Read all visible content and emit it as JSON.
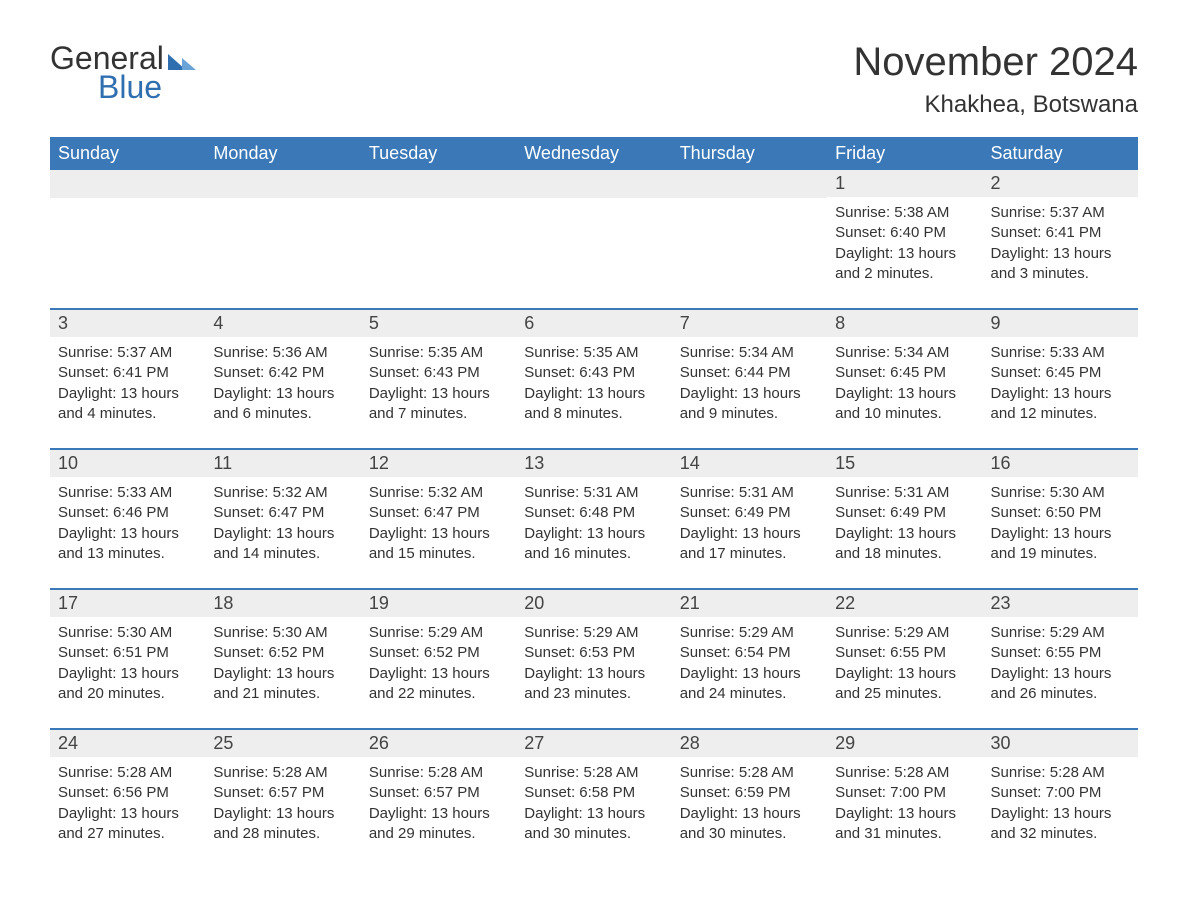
{
  "logo": {
    "text_general": "General",
    "text_blue": "Blue"
  },
  "title": "November 2024",
  "location": "Khakhea, Botswana",
  "colors": {
    "header_bg": "#3a78b8",
    "header_text": "#ffffff",
    "cell_top_border": "#3a78b8",
    "day_bar_bg": "#eeeeee",
    "text": "#333333",
    "logo_blue": "#2f6fb0"
  },
  "day_headers": [
    "Sunday",
    "Monday",
    "Tuesday",
    "Wednesday",
    "Thursday",
    "Friday",
    "Saturday"
  ],
  "weeks": [
    [
      null,
      null,
      null,
      null,
      null,
      {
        "num": "1",
        "sunrise": "Sunrise: 5:38 AM",
        "sunset": "Sunset: 6:40 PM",
        "daylight": "Daylight: 13 hours and 2 minutes."
      },
      {
        "num": "2",
        "sunrise": "Sunrise: 5:37 AM",
        "sunset": "Sunset: 6:41 PM",
        "daylight": "Daylight: 13 hours and 3 minutes."
      }
    ],
    [
      {
        "num": "3",
        "sunrise": "Sunrise: 5:37 AM",
        "sunset": "Sunset: 6:41 PM",
        "daylight": "Daylight: 13 hours and 4 minutes."
      },
      {
        "num": "4",
        "sunrise": "Sunrise: 5:36 AM",
        "sunset": "Sunset: 6:42 PM",
        "daylight": "Daylight: 13 hours and 6 minutes."
      },
      {
        "num": "5",
        "sunrise": "Sunrise: 5:35 AM",
        "sunset": "Sunset: 6:43 PM",
        "daylight": "Daylight: 13 hours and 7 minutes."
      },
      {
        "num": "6",
        "sunrise": "Sunrise: 5:35 AM",
        "sunset": "Sunset: 6:43 PM",
        "daylight": "Daylight: 13 hours and 8 minutes."
      },
      {
        "num": "7",
        "sunrise": "Sunrise: 5:34 AM",
        "sunset": "Sunset: 6:44 PM",
        "daylight": "Daylight: 13 hours and 9 minutes."
      },
      {
        "num": "8",
        "sunrise": "Sunrise: 5:34 AM",
        "sunset": "Sunset: 6:45 PM",
        "daylight": "Daylight: 13 hours and 10 minutes."
      },
      {
        "num": "9",
        "sunrise": "Sunrise: 5:33 AM",
        "sunset": "Sunset: 6:45 PM",
        "daylight": "Daylight: 13 hours and 12 minutes."
      }
    ],
    [
      {
        "num": "10",
        "sunrise": "Sunrise: 5:33 AM",
        "sunset": "Sunset: 6:46 PM",
        "daylight": "Daylight: 13 hours and 13 minutes."
      },
      {
        "num": "11",
        "sunrise": "Sunrise: 5:32 AM",
        "sunset": "Sunset: 6:47 PM",
        "daylight": "Daylight: 13 hours and 14 minutes."
      },
      {
        "num": "12",
        "sunrise": "Sunrise: 5:32 AM",
        "sunset": "Sunset: 6:47 PM",
        "daylight": "Daylight: 13 hours and 15 minutes."
      },
      {
        "num": "13",
        "sunrise": "Sunrise: 5:31 AM",
        "sunset": "Sunset: 6:48 PM",
        "daylight": "Daylight: 13 hours and 16 minutes."
      },
      {
        "num": "14",
        "sunrise": "Sunrise: 5:31 AM",
        "sunset": "Sunset: 6:49 PM",
        "daylight": "Daylight: 13 hours and 17 minutes."
      },
      {
        "num": "15",
        "sunrise": "Sunrise: 5:31 AM",
        "sunset": "Sunset: 6:49 PM",
        "daylight": "Daylight: 13 hours and 18 minutes."
      },
      {
        "num": "16",
        "sunrise": "Sunrise: 5:30 AM",
        "sunset": "Sunset: 6:50 PM",
        "daylight": "Daylight: 13 hours and 19 minutes."
      }
    ],
    [
      {
        "num": "17",
        "sunrise": "Sunrise: 5:30 AM",
        "sunset": "Sunset: 6:51 PM",
        "daylight": "Daylight: 13 hours and 20 minutes."
      },
      {
        "num": "18",
        "sunrise": "Sunrise: 5:30 AM",
        "sunset": "Sunset: 6:52 PM",
        "daylight": "Daylight: 13 hours and 21 minutes."
      },
      {
        "num": "19",
        "sunrise": "Sunrise: 5:29 AM",
        "sunset": "Sunset: 6:52 PM",
        "daylight": "Daylight: 13 hours and 22 minutes."
      },
      {
        "num": "20",
        "sunrise": "Sunrise: 5:29 AM",
        "sunset": "Sunset: 6:53 PM",
        "daylight": "Daylight: 13 hours and 23 minutes."
      },
      {
        "num": "21",
        "sunrise": "Sunrise: 5:29 AM",
        "sunset": "Sunset: 6:54 PM",
        "daylight": "Daylight: 13 hours and 24 minutes."
      },
      {
        "num": "22",
        "sunrise": "Sunrise: 5:29 AM",
        "sunset": "Sunset: 6:55 PM",
        "daylight": "Daylight: 13 hours and 25 minutes."
      },
      {
        "num": "23",
        "sunrise": "Sunrise: 5:29 AM",
        "sunset": "Sunset: 6:55 PM",
        "daylight": "Daylight: 13 hours and 26 minutes."
      }
    ],
    [
      {
        "num": "24",
        "sunrise": "Sunrise: 5:28 AM",
        "sunset": "Sunset: 6:56 PM",
        "daylight": "Daylight: 13 hours and 27 minutes."
      },
      {
        "num": "25",
        "sunrise": "Sunrise: 5:28 AM",
        "sunset": "Sunset: 6:57 PM",
        "daylight": "Daylight: 13 hours and 28 minutes."
      },
      {
        "num": "26",
        "sunrise": "Sunrise: 5:28 AM",
        "sunset": "Sunset: 6:57 PM",
        "daylight": "Daylight: 13 hours and 29 minutes."
      },
      {
        "num": "27",
        "sunrise": "Sunrise: 5:28 AM",
        "sunset": "Sunset: 6:58 PM",
        "daylight": "Daylight: 13 hours and 30 minutes."
      },
      {
        "num": "28",
        "sunrise": "Sunrise: 5:28 AM",
        "sunset": "Sunset: 6:59 PM",
        "daylight": "Daylight: 13 hours and 30 minutes."
      },
      {
        "num": "29",
        "sunrise": "Sunrise: 5:28 AM",
        "sunset": "Sunset: 7:00 PM",
        "daylight": "Daylight: 13 hours and 31 minutes."
      },
      {
        "num": "30",
        "sunrise": "Sunrise: 5:28 AM",
        "sunset": "Sunset: 7:00 PM",
        "daylight": "Daylight: 13 hours and 32 minutes."
      }
    ]
  ]
}
